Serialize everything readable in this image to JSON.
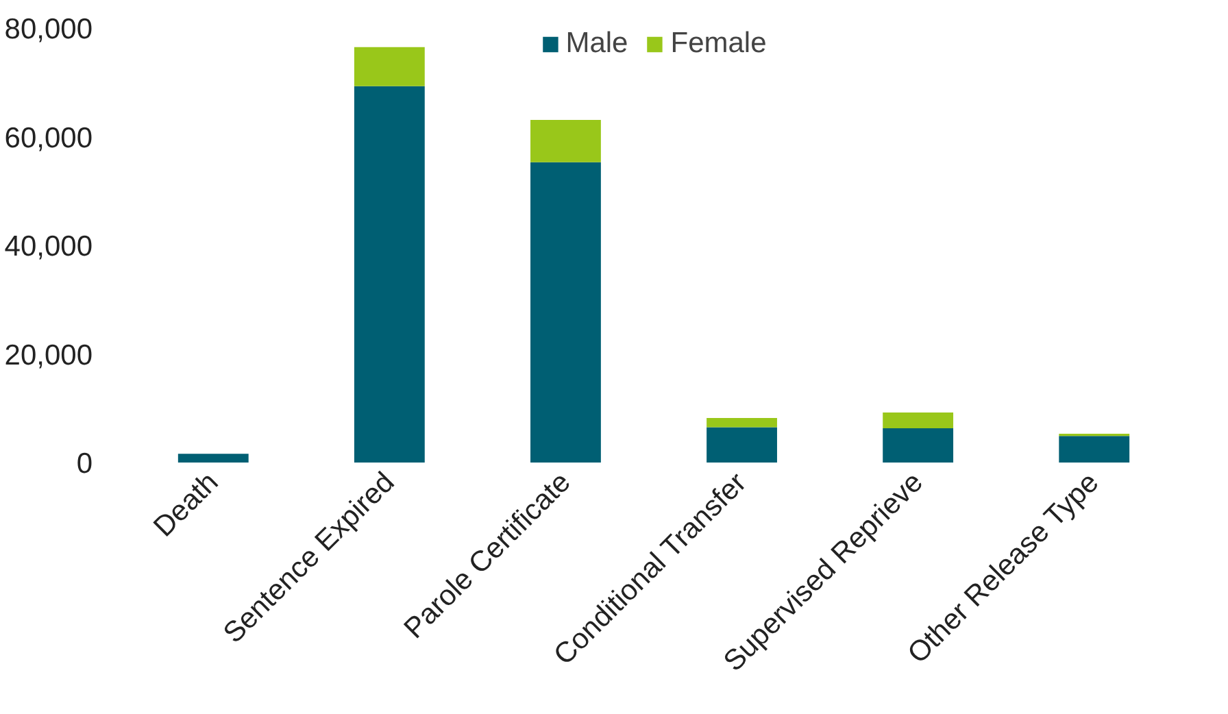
{
  "chart_data": {
    "type": "bar",
    "stacked": true,
    "categories": [
      "Death",
      "Sentence Expired",
      "Parole Certificate",
      "Conditional Transfer",
      "Supervised Reprieve",
      "Other Release Type"
    ],
    "series": [
      {
        "name": "Male",
        "color": "#005f73",
        "values": [
          1600,
          69300,
          55300,
          6500,
          6300,
          4900
        ]
      },
      {
        "name": "Female",
        "color": "#99c71a",
        "values": [
          null,
          7200,
          7800,
          1700,
          2900,
          400
        ]
      }
    ],
    "ylim": [
      0,
      80000
    ],
    "yticks": [
      {
        "value": 0,
        "label": "0"
      },
      {
        "value": 20000,
        "label": "20,000"
      },
      {
        "value": 40000,
        "label": "40,000"
      },
      {
        "value": 60000,
        "label": "60,000"
      },
      {
        "value": 80000,
        "label": "80,000"
      }
    ],
    "grid": false,
    "legend": "top"
  }
}
